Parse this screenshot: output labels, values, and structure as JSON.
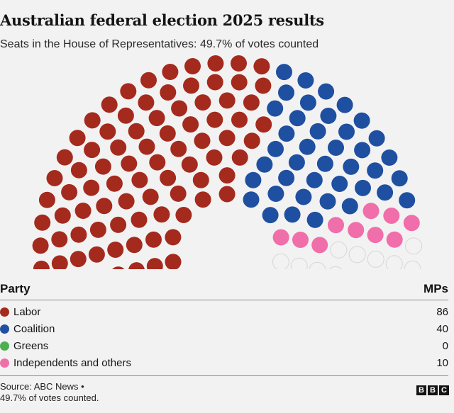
{
  "title": "Australian federal election 2025 results",
  "subtitle": "Seats in the House of Representatives: 49.7% of votes counted",
  "table": {
    "col_party": "Party",
    "col_mps": "MPs",
    "rows": [
      {
        "party": "Labor",
        "mps": "86",
        "color": "#a52a1e"
      },
      {
        "party": "Coalition",
        "mps": "40",
        "color": "#1f4fa0"
      },
      {
        "party": "Greens",
        "mps": "0",
        "color": "#4caf50"
      },
      {
        "party": "Independents and others",
        "mps": "10",
        "color": "#f06eaa"
      }
    ]
  },
  "source_line1": "Source: ABC News •",
  "source_line2": "49.7% of votes counted.",
  "logo": "BBC",
  "chart_data": {
    "type": "hemicycle",
    "total_seats": 150,
    "series": [
      {
        "name": "Labor",
        "values": [
          86
        ],
        "color": "#a52a1e"
      },
      {
        "name": "Coalition",
        "values": [
          40
        ],
        "color": "#1f4fa0"
      },
      {
        "name": "Greens",
        "values": [
          0
        ],
        "color": "#4caf50"
      },
      {
        "name": "Independents and others",
        "values": [
          10
        ],
        "color": "#f06eaa"
      }
    ],
    "undeclared_seats": 14,
    "undeclared_color": "#f2f2f2"
  }
}
